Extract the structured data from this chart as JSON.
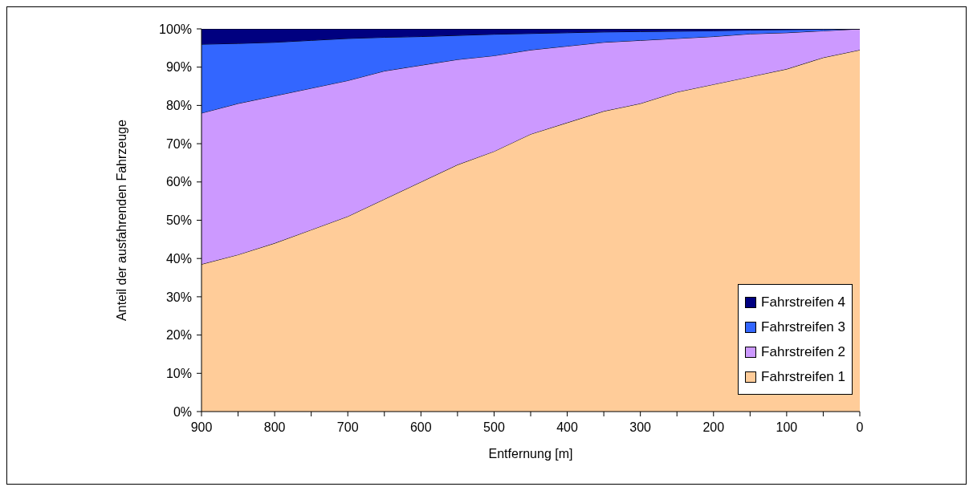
{
  "chart_data": {
    "type": "area",
    "stacked": true,
    "xlabel": "Entfernung [m]",
    "ylabel": "Anteil der ausfahrenden Fahrzeuge",
    "x": [
      900,
      850,
      800,
      750,
      700,
      650,
      600,
      550,
      500,
      450,
      400,
      350,
      300,
      250,
      200,
      150,
      100,
      50,
      0
    ],
    "xlim": [
      900,
      0
    ],
    "xticks": [
      900,
      {
        "value": 850,
        "label": null
      },
      800,
      {
        "value": 750,
        "label": null
      },
      700,
      {
        "value": 650,
        "label": null
      },
      600,
      {
        "value": 550,
        "label": null
      },
      500,
      {
        "value": 450,
        "label": null
      },
      400,
      {
        "value": 350,
        "label": null
      },
      300,
      {
        "value": 250,
        "label": null
      },
      200,
      {
        "value": 150,
        "label": null
      },
      100,
      {
        "value": 50,
        "label": null
      },
      0
    ],
    "ylim": [
      0,
      100
    ],
    "yticks": [
      {
        "value": 0,
        "label": "0%"
      },
      {
        "value": 10,
        "label": "10%"
      },
      {
        "value": 20,
        "label": "20%"
      },
      {
        "value": 30,
        "label": "30%"
      },
      {
        "value": 40,
        "label": "40%"
      },
      {
        "value": 50,
        "label": "50%"
      },
      {
        "value": 60,
        "label": "60%"
      },
      {
        "value": 70,
        "label": "70%"
      },
      {
        "value": 80,
        "label": "80%"
      },
      {
        "value": 90,
        "label": "90%"
      },
      {
        "value": 100,
        "label": "100%"
      }
    ],
    "grid": false,
    "legend": "bottom right",
    "series": [
      {
        "name": "Fahrstreifen 1",
        "color": "#ffcc99",
        "values": [
          38.5,
          41,
          44,
          47.5,
          51,
          55.5,
          60,
          64.5,
          68,
          72.5,
          75.5,
          78.5,
          80.5,
          83.5,
          85.5,
          87.5,
          89.5,
          92.5,
          94.5
        ]
      },
      {
        "name": "Fahrstreifen 2",
        "color": "#cc99ff",
        "values": [
          39.5,
          39.5,
          38.5,
          37,
          35.5,
          33.5,
          30.5,
          27.5,
          25,
          22,
          20,
          18,
          16.5,
          14,
          12.5,
          11.2,
          9.5,
          7,
          5.5
        ]
      },
      {
        "name": "Fahrstreifen 3",
        "color": "#3366ff",
        "values": [
          18,
          15.7,
          14,
          12.5,
          11,
          8.8,
          7.5,
          6.3,
          5.6,
          4.3,
          3.5,
          2.7,
          2.3,
          1.9,
          1.5,
          1,
          0.8,
          0.4,
          0
        ]
      },
      {
        "name": "Fahrstreifen 4",
        "color": "#000080",
        "values": [
          4,
          3.8,
          3.5,
          3,
          2.5,
          2.2,
          2,
          1.7,
          1.4,
          1.2,
          1,
          0.8,
          0.7,
          0.6,
          0.5,
          0.3,
          0.2,
          0.1,
          0
        ]
      }
    ]
  }
}
